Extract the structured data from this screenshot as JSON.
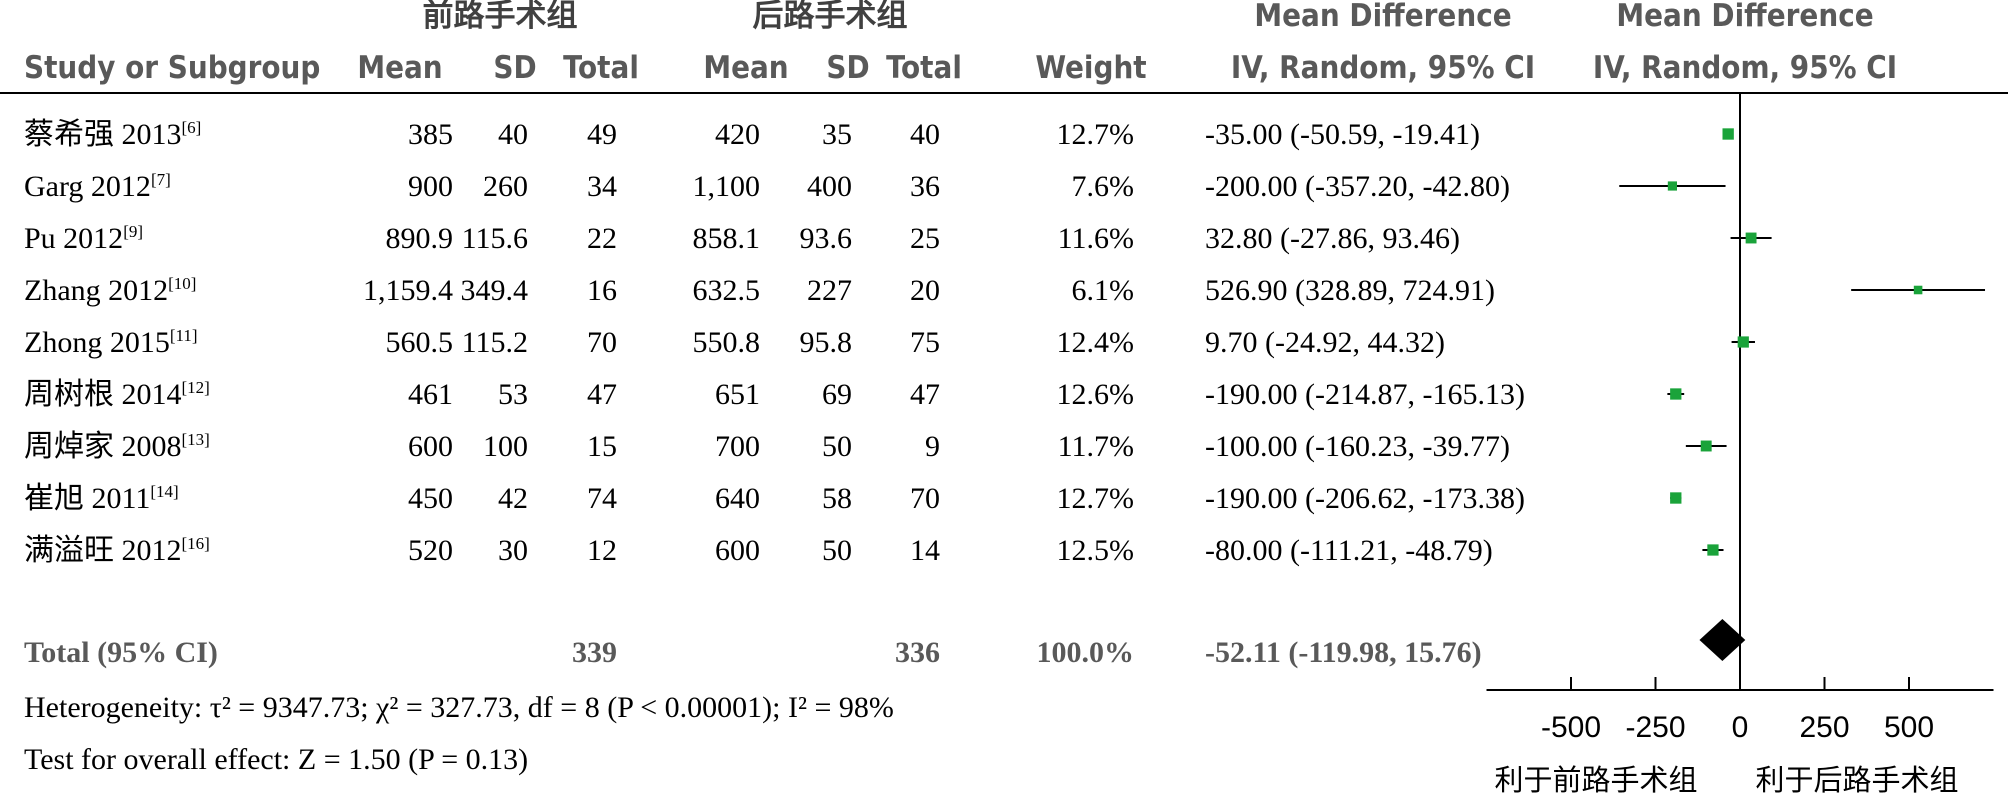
{
  "header": {
    "group1": "前路手术组",
    "group2": "后路手术组",
    "md_title": "Mean Difference",
    "md_subtitle": "IV, Random, 95% CI",
    "plot_title": "Mean Difference",
    "plot_subtitle": "IV, Random, 95% CI",
    "study": "Study or Subgroup",
    "mean": "Mean",
    "sd": "SD",
    "total": "Total",
    "weight": "Weight"
  },
  "studies": [
    {
      "name": "蔡希强 2013",
      "ref": "[6]",
      "m1": "385",
      "sd1": "40",
      "n1": "49",
      "m2": "420",
      "sd2": "35",
      "n2": "40",
      "weight": "12.7%",
      "ci_text": "-35.00 (-50.59, -19.41)"
    },
    {
      "name": "Garg 2012",
      "ref": "[7]",
      "m1": "900",
      "sd1": "260",
      "n1": "34",
      "m2": "1,100",
      "sd2": "400",
      "n2": "36",
      "weight": "7.6%",
      "ci_text": "-200.00 (-357.20, -42.80)"
    },
    {
      "name": "Pu 2012",
      "ref": "[9]",
      "m1": "890.9",
      "sd1": "115.6",
      "n1": "22",
      "m2": "858.1",
      "sd2": "93.6",
      "n2": "25",
      "weight": "11.6%",
      "ci_text": "32.80 (-27.86, 93.46)"
    },
    {
      "name": "Zhang 2012",
      "ref": "[10]",
      "m1": "1,159.4",
      "sd1": "349.4",
      "n1": "16",
      "m2": "632.5",
      "sd2": "227",
      "n2": "20",
      "weight": "6.1%",
      "ci_text": "526.90 (328.89, 724.91)"
    },
    {
      "name": "Zhong 2015",
      "ref": "[11]",
      "m1": "560.5",
      "sd1": "115.2",
      "n1": "70",
      "m2": "550.8",
      "sd2": "95.8",
      "n2": "75",
      "weight": "12.4%",
      "ci_text": "9.70 (-24.92, 44.32)"
    },
    {
      "name": "周树根 2014",
      "ref": "[12]",
      "m1": "461",
      "sd1": "53",
      "n1": "47",
      "m2": "651",
      "sd2": "69",
      "n2": "47",
      "weight": "12.6%",
      "ci_text": "-190.00 (-214.87, -165.13)"
    },
    {
      "name": "周焯家 2008",
      "ref": "[13]",
      "m1": "600",
      "sd1": "100",
      "n1": "15",
      "m2": "700",
      "sd2": "50",
      "n2": "9",
      "weight": "11.7%",
      "ci_text": "-100.00 (-160.23, -39.77)"
    },
    {
      "name": "崔旭 2011",
      "ref": "[14]",
      "m1": "450",
      "sd1": "42",
      "n1": "74",
      "m2": "640",
      "sd2": "58",
      "n2": "70",
      "weight": "12.7%",
      "ci_text": "-190.00 (-206.62, -173.38)"
    },
    {
      "name": "满溢旺 2012",
      "ref": "[16]",
      "m1": "520",
      "sd1": "30",
      "n1": "12",
      "m2": "600",
      "sd2": "50",
      "n2": "14",
      "weight": "12.5%",
      "ci_text": "-80.00 (-111.21, -48.79)"
    }
  ],
  "total": {
    "label": "Total (95% CI)",
    "n1": "339",
    "n2": "336",
    "weight": "100.0%",
    "ci_text": "-52.11 (-119.98, 15.76)"
  },
  "heterogeneity": "Heterogeneity: τ² = 9347.73; χ² = 327.73, df = 8 (P < 0.00001); I² = 98%",
  "overall_effect": "Test for overall effect: Z = 1.50 (P = 0.13)",
  "favors_left": "利于前路手术组",
  "favors_right": "利于后路手术组",
  "colors": {
    "marker": "#1aa33a",
    "diamond": "#000000",
    "header_text": "#595959"
  },
  "chart_data": {
    "type": "forest",
    "xlim": [
      -750,
      750
    ],
    "xticks": [
      -500,
      -250,
      0,
      250,
      500
    ],
    "series": [
      {
        "study": "蔡希强 2013",
        "md": -35.0,
        "lower": -50.59,
        "upper": -19.41,
        "weight": 12.7
      },
      {
        "study": "Garg 2012",
        "md": -200.0,
        "lower": -357.2,
        "upper": -42.8,
        "weight": 7.6
      },
      {
        "study": "Pu 2012",
        "md": 32.8,
        "lower": -27.86,
        "upper": 93.46,
        "weight": 11.6
      },
      {
        "study": "Zhang 2012",
        "md": 526.9,
        "lower": 328.89,
        "upper": 724.91,
        "weight": 6.1
      },
      {
        "study": "Zhong 2015",
        "md": 9.7,
        "lower": -24.92,
        "upper": 44.32,
        "weight": 12.4
      },
      {
        "study": "周树根 2014",
        "md": -190.0,
        "lower": -214.87,
        "upper": -165.13,
        "weight": 12.6
      },
      {
        "study": "周焯家 2008",
        "md": -100.0,
        "lower": -160.23,
        "upper": -39.77,
        "weight": 11.7
      },
      {
        "study": "崔旭 2011",
        "md": -190.0,
        "lower": -206.62,
        "upper": -173.38,
        "weight": 12.7
      },
      {
        "study": "满溢旺 2012",
        "md": -80.0,
        "lower": -111.21,
        "upper": -48.79,
        "weight": 12.5
      }
    ],
    "pooled": {
      "md": -52.11,
      "lower": -119.98,
      "upper": 15.76
    }
  }
}
